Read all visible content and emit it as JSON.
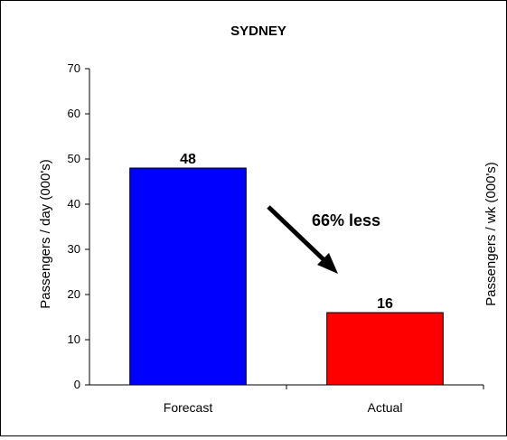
{
  "chart_data": {
    "type": "bar",
    "title": "SYDNEY",
    "categories": [
      "Forecast",
      "Actual"
    ],
    "values": [
      48,
      16
    ],
    "data_labels": [
      "48",
      "16"
    ],
    "bar_colors": [
      "#0000ff",
      "#ff0000"
    ],
    "ylabel": "Passengers / day (000's)",
    "y2label": "Passengers / wk (000's)",
    "ylim": [
      0,
      70
    ],
    "yticks": [
      0,
      10,
      20,
      30,
      40,
      50,
      60,
      70
    ],
    "ytick_labels": [
      "0",
      "10",
      "20",
      "30",
      "40",
      "50",
      "60",
      "70"
    ],
    "grid": false,
    "legend": "none",
    "annotation": {
      "text": "66% less",
      "arrow": "from Forecast bar down toward Actual bar"
    }
  }
}
